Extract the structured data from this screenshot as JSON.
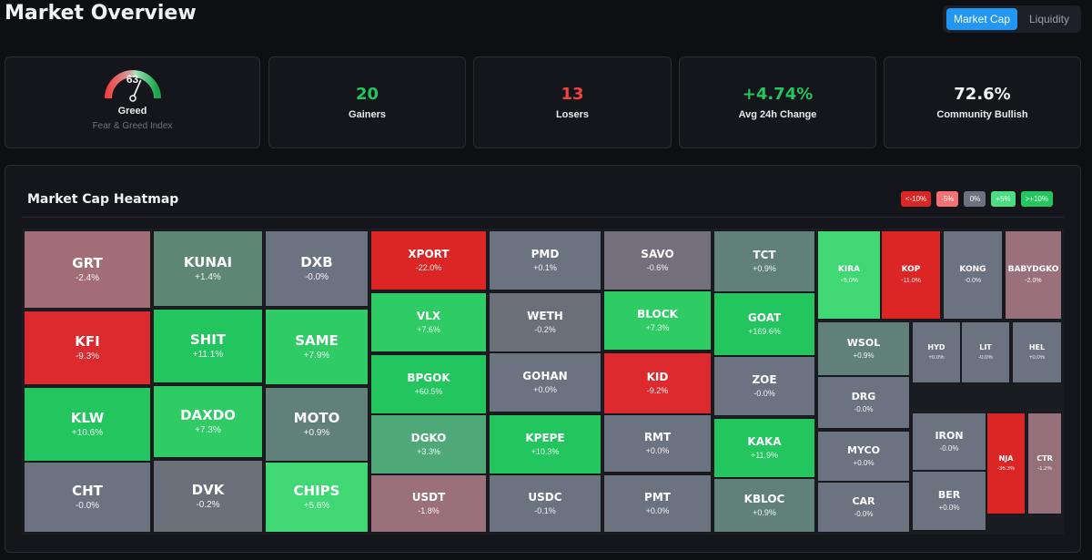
{
  "page": {
    "title": "Market Overview"
  },
  "toggle": {
    "options": [
      "Market Cap",
      "Liquidity"
    ],
    "active": "Market Cap"
  },
  "fear_greed": {
    "value": "63",
    "value_num": 63,
    "label": "Greed",
    "sub": "Fear & Greed Index"
  },
  "stats": [
    {
      "value": "20",
      "label": "Gainers"
    },
    {
      "value": "13",
      "label": "Losers"
    },
    {
      "value": "+4.74%",
      "label": "Avg 24h Change"
    },
    {
      "value": "72.6%",
      "label": "Community Bullish"
    }
  ],
  "heatmap": {
    "title": "Market Cap Heatmap",
    "legend": [
      {
        "label": "<-10%",
        "color": "#dc2626"
      },
      {
        "label": "-5%",
        "color": "#f87171"
      },
      {
        "label": "0%",
        "color": "#6b7280"
      },
      {
        "label": "+5%",
        "color": "#4ade80"
      },
      {
        "label": ">+10%",
        "color": "#22c55e"
      }
    ],
    "tiles": [
      {
        "symbol": "GRT",
        "change": "-2.4%",
        "color": "#a26d74"
      },
      {
        "symbol": "KFI",
        "change": "-9.3%",
        "color": "#dc2a2e"
      },
      {
        "symbol": "KLW",
        "change": "+10.6%",
        "color": "#22c55e"
      },
      {
        "symbol": "CHT",
        "change": "-0.0%",
        "color": "#6b7280"
      },
      {
        "symbol": "KUNAI",
        "change": "+1.4%",
        "color": "#5d8674"
      },
      {
        "symbol": "SHIT",
        "change": "+11.1%",
        "color": "#22c55e"
      },
      {
        "symbol": "DAXDO",
        "change": "+7.3%",
        "color": "#2fcc66"
      },
      {
        "symbol": "DVK",
        "change": "-0.2%",
        "color": "#6b6f7a"
      },
      {
        "symbol": "DXB",
        "change": "-0.0%",
        "color": "#6b7280"
      },
      {
        "symbol": "SAME",
        "change": "+7.9%",
        "color": "#2fcc66"
      },
      {
        "symbol": "MOTO",
        "change": "+0.9%",
        "color": "#62807a"
      },
      {
        "symbol": "CHIPS",
        "change": "+5.6%",
        "color": "#3fd874"
      },
      {
        "symbol": "XPORT",
        "change": "-22.0%",
        "color": "#dc2626"
      },
      {
        "symbol": "VLX",
        "change": "+7.6%",
        "color": "#2fcc66"
      },
      {
        "symbol": "BPGOK",
        "change": "+60.5%",
        "color": "#22c55e"
      },
      {
        "symbol": "DGKO",
        "change": "+3.3%",
        "color": "#4ea877"
      },
      {
        "symbol": "USDT",
        "change": "-1.8%",
        "color": "#9a707a"
      },
      {
        "symbol": "PMD",
        "change": "+0.1%",
        "color": "#6b7280"
      },
      {
        "symbol": "WETH",
        "change": "-0.2%",
        "color": "#6b6f7a"
      },
      {
        "symbol": "GOHAN",
        "change": "+0.0%",
        "color": "#6b7280"
      },
      {
        "symbol": "KPEPE",
        "change": "+10.3%",
        "color": "#22c55e"
      },
      {
        "symbol": "USDC",
        "change": "-0.1%",
        "color": "#6b7280"
      },
      {
        "symbol": "SAVO",
        "change": "-0.6%",
        "color": "#73707c"
      },
      {
        "symbol": "BLOCK",
        "change": "+7.3%",
        "color": "#2fcc66"
      },
      {
        "symbol": "KID",
        "change": "-9.2%",
        "color": "#dc2a2e"
      },
      {
        "symbol": "RMT",
        "change": "+0.0%",
        "color": "#6b7280"
      },
      {
        "symbol": "PMT",
        "change": "+0.0%",
        "color": "#6b7280"
      },
      {
        "symbol": "TCT",
        "change": "+0.9%",
        "color": "#62807a"
      },
      {
        "symbol": "GOAT",
        "change": "+169.6%",
        "color": "#22c55e"
      },
      {
        "symbol": "ZOE",
        "change": "-0.0%",
        "color": "#6b7280"
      },
      {
        "symbol": "KAKA",
        "change": "+11.9%",
        "color": "#22c55e"
      },
      {
        "symbol": "KBLOC",
        "change": "+0.9%",
        "color": "#62807a"
      },
      {
        "symbol": "KIRA",
        "change": "+5.0%",
        "color": "#3fd874"
      },
      {
        "symbol": "KOP",
        "change": "-11.0%",
        "color": "#dc2626"
      },
      {
        "symbol": "KONG",
        "change": "-0.0%",
        "color": "#6b7280"
      },
      {
        "symbol": "BABYDGKO",
        "change": "-2.0%",
        "color": "#9a707a"
      },
      {
        "symbol": "WSOL",
        "change": "+0.9%",
        "color": "#62807a"
      },
      {
        "symbol": "DRG",
        "change": "-0.0%",
        "color": "#6b7280"
      },
      {
        "symbol": "MYCO",
        "change": "+0.0%",
        "color": "#6b7280"
      },
      {
        "symbol": "CAR",
        "change": "-0.0%",
        "color": "#6b7280"
      },
      {
        "symbol": "HYD",
        "change": "+0.0%",
        "color": "#6b7280"
      },
      {
        "symbol": "LIT",
        "change": "-0.0%",
        "color": "#6b7280"
      },
      {
        "symbol": "HEL",
        "change": "+0.0%",
        "color": "#6b7280"
      },
      {
        "symbol": "IRON",
        "change": "-0.0%",
        "color": "#6b7280"
      },
      {
        "symbol": "BER",
        "change": "+0.0%",
        "color": "#6b7280"
      },
      {
        "symbol": "NJA",
        "change": "-36.3%",
        "color": "#dc2626"
      },
      {
        "symbol": "CTR",
        "change": "-1.2%",
        "color": "#967078"
      }
    ]
  }
}
